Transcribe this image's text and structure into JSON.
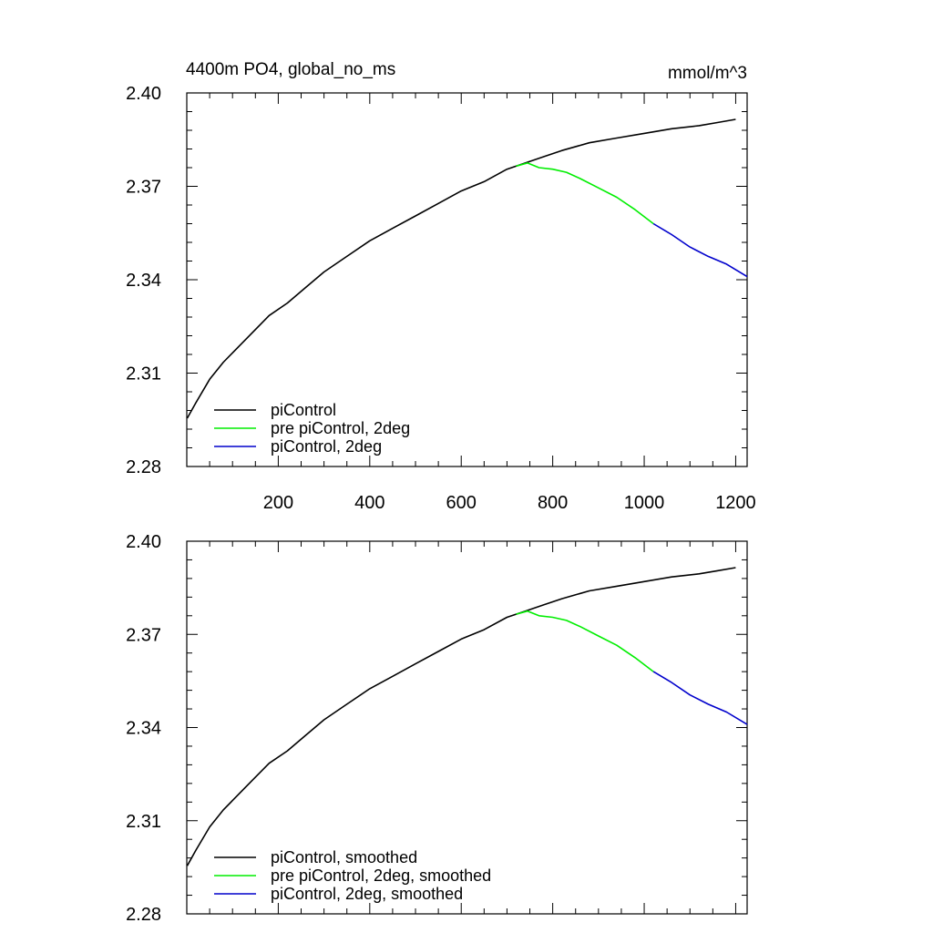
{
  "chart_data": [
    {
      "type": "line",
      "title": "4400m PO4, global_no_ms",
      "units": "mmol/m^3",
      "xlim": [
        0,
        1225
      ],
      "ylim": [
        2.28,
        2.4
      ],
      "xticks": [
        200,
        400,
        600,
        800,
        1000,
        1200
      ],
      "xtick_labels": [
        "200",
        "400",
        "600",
        "800",
        "1000",
        "1200"
      ],
      "show_x_tick_labels": true,
      "yticks": [
        2.28,
        2.31,
        2.34,
        2.37,
        2.4
      ],
      "ytick_labels": [
        "2.28",
        "2.31",
        "2.34",
        "2.37",
        "2.40"
      ],
      "grid": false,
      "legend_position": "bottom-left",
      "series": [
        {
          "name": "piControl",
          "color": "#000000",
          "x": [
            1,
            20,
            50,
            80,
            100,
            140,
            180,
            220,
            260,
            300,
            350,
            400,
            450,
            500,
            550,
            600,
            650,
            700,
            740,
            780,
            820,
            880,
            940,
            1000,
            1060,
            1120,
            1160,
            1200
          ],
          "y": [
            2.2955,
            2.3005,
            2.308,
            2.3135,
            2.3165,
            2.3225,
            2.3285,
            2.3325,
            2.3375,
            2.3425,
            2.3475,
            2.3525,
            2.3565,
            2.3605,
            2.3645,
            2.3685,
            2.3715,
            2.3755,
            2.3775,
            2.3795,
            2.3815,
            2.384,
            2.3855,
            2.387,
            2.3885,
            2.3895,
            2.3905,
            2.3915
          ]
        },
        {
          "name": "pre piControl, 2deg",
          "color": "#00ee00",
          "x": [
            720,
            745,
            770,
            800,
            830,
            860,
            900,
            940,
            980,
            1020
          ],
          "y": [
            2.3765,
            2.3775,
            2.376,
            2.3755,
            2.3745,
            2.3725,
            2.3695,
            2.3665,
            2.3625,
            2.358
          ]
        },
        {
          "name": "piControl, 2deg",
          "color": "#0000cc",
          "x": [
            1020,
            1060,
            1100,
            1140,
            1180,
            1225
          ],
          "y": [
            2.358,
            2.3545,
            2.3505,
            2.3475,
            2.345,
            2.341
          ]
        }
      ]
    },
    {
      "type": "line",
      "title": "",
      "units": "",
      "xlim": [
        0,
        1225
      ],
      "ylim": [
        2.28,
        2.4
      ],
      "xticks": [
        200,
        400,
        600,
        800,
        1000,
        1200
      ],
      "xtick_labels": [],
      "show_x_tick_labels": false,
      "yticks": [
        2.28,
        2.31,
        2.34,
        2.37,
        2.4
      ],
      "ytick_labels": [
        "2.28",
        "2.31",
        "2.34",
        "2.37",
        "2.40"
      ],
      "grid": false,
      "legend_position": "bottom-left",
      "series": [
        {
          "name": "piControl, smoothed",
          "color": "#000000",
          "x": [
            1,
            20,
            50,
            80,
            100,
            140,
            180,
            220,
            260,
            300,
            350,
            400,
            450,
            500,
            550,
            600,
            650,
            700,
            740,
            780,
            820,
            880,
            940,
            1000,
            1060,
            1120,
            1160,
            1200
          ],
          "y": [
            2.2955,
            2.3005,
            2.308,
            2.3135,
            2.3165,
            2.3225,
            2.3285,
            2.3325,
            2.3375,
            2.3425,
            2.3475,
            2.3525,
            2.3565,
            2.3605,
            2.3645,
            2.3685,
            2.3715,
            2.3755,
            2.3775,
            2.3795,
            2.3815,
            2.384,
            2.3855,
            2.387,
            2.3885,
            2.3895,
            2.3905,
            2.3915
          ]
        },
        {
          "name": "pre piControl, 2deg, smoothed",
          "color": "#00ee00",
          "x": [
            720,
            745,
            770,
            800,
            830,
            860,
            900,
            940,
            980,
            1020
          ],
          "y": [
            2.3765,
            2.3775,
            2.376,
            2.3755,
            2.3745,
            2.3725,
            2.3695,
            2.3665,
            2.3625,
            2.358
          ]
        },
        {
          "name": "piControl, 2deg, smoothed",
          "color": "#0000cc",
          "x": [
            1020,
            1060,
            1100,
            1140,
            1180,
            1225
          ],
          "y": [
            2.358,
            2.3545,
            2.3505,
            2.3475,
            2.345,
            2.341
          ]
        }
      ]
    }
  ]
}
